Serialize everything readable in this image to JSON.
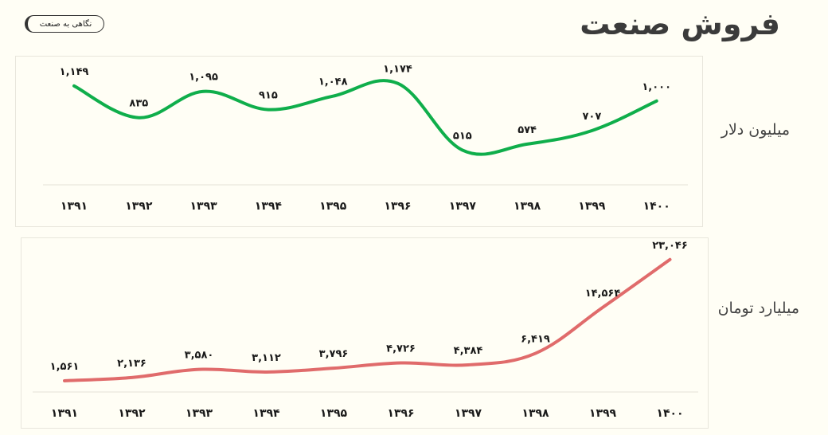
{
  "header": {
    "title": "فروش صنعت",
    "glance_button_label": "نگاهی به صنعت"
  },
  "colors": {
    "background": "#fffef5",
    "dollar_series": "#0fae4b",
    "toman_series": "#e06b6b"
  },
  "chart_data": [
    {
      "type": "line",
      "side_label": "میلیون دلار",
      "categories": [
        "۱۳۹۱",
        "۱۳۹۲",
        "۱۳۹۳",
        "۱۳۹۴",
        "۱۳۹۵",
        "۱۳۹۶",
        "۱۳۹۷",
        "۱۳۹۸",
        "۱۳۹۹",
        "۱۴۰۰"
      ],
      "values": [
        1149,
        835,
        1095,
        915,
        1048,
        1174,
        515,
        574,
        707,
        1000
      ],
      "value_labels": [
        "۱,۱۴۹",
        "۸۳۵",
        "۱,۰۹۵",
        "۹۱۵",
        "۱,۰۴۸",
        "۱,۱۷۴",
        "۵۱۵",
        "۵۷۴",
        "۷۰۷",
        "۱,۰۰۰"
      ],
      "color": "#0fae4b"
    },
    {
      "type": "line",
      "side_label": "میلیارد تومان",
      "categories": [
        "۱۳۹۱",
        "۱۳۹۲",
        "۱۳۹۳",
        "۱۳۹۴",
        "۱۳۹۵",
        "۱۳۹۶",
        "۱۳۹۷",
        "۱۳۹۸",
        "۱۳۹۹",
        "۱۴۰۰"
      ],
      "values": [
        1561,
        2136,
        3580,
        3112,
        3796,
        4726,
        4384,
        6419,
        14564,
        23046
      ],
      "value_labels": [
        "۱,۵۶۱",
        "۲,۱۳۶",
        "۳,۵۸۰",
        "۳,۱۱۲",
        "۳,۷۹۶",
        "۴,۷۲۶",
        "۴,۳۸۴",
        "۶,۴۱۹",
        "۱۴,۵۶۴",
        "۲۳,۰۴۶"
      ],
      "color": "#e06b6b"
    }
  ]
}
